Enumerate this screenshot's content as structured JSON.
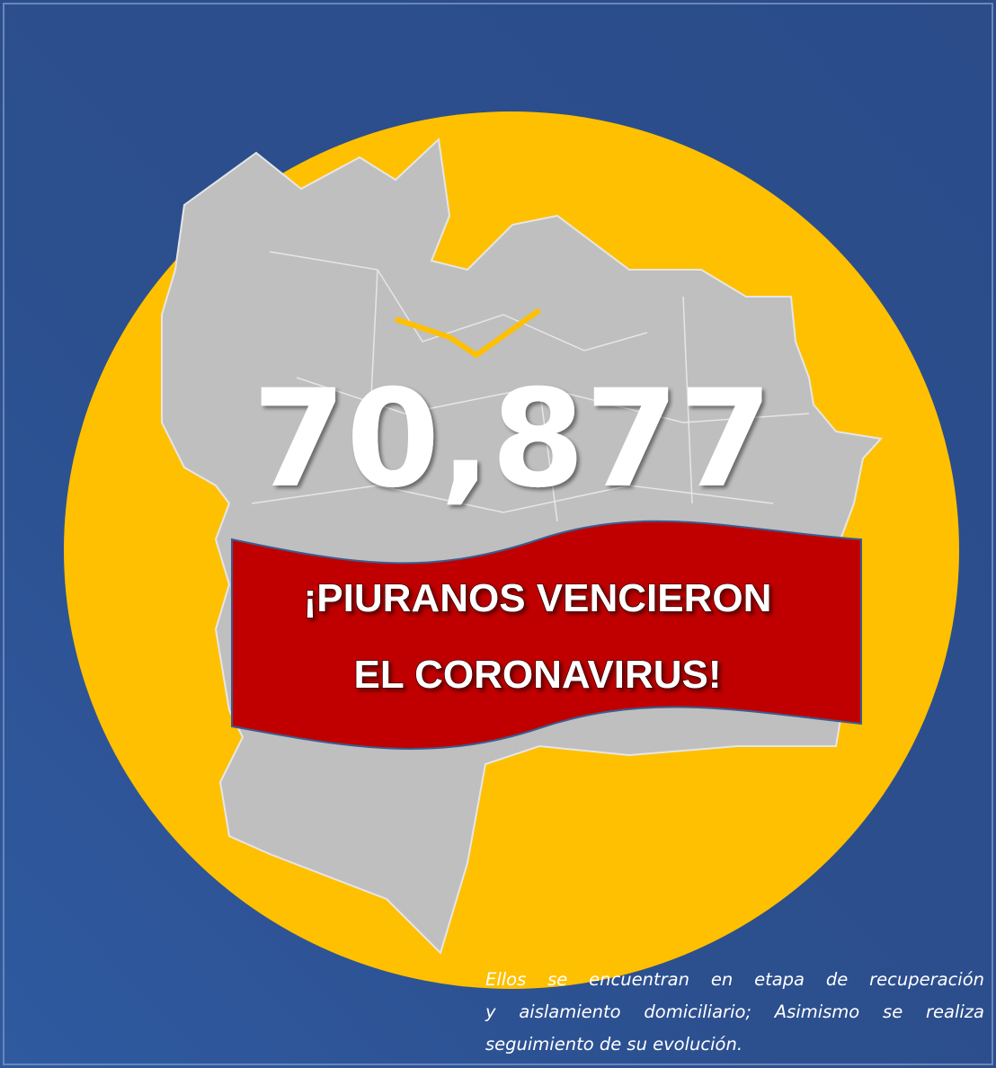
{
  "headline_number": "70,877",
  "banner": {
    "lines": [
      "¡PIURANOS VENCIERON",
      "EL CORONAVIRUS!"
    ]
  },
  "note": {
    "lines": [
      "Ellos se encuentran en etapa de recuperación",
      "y aislamiento domiciliario; Asimismo se realiza",
      "seguimiento de su evolución."
    ]
  }
}
